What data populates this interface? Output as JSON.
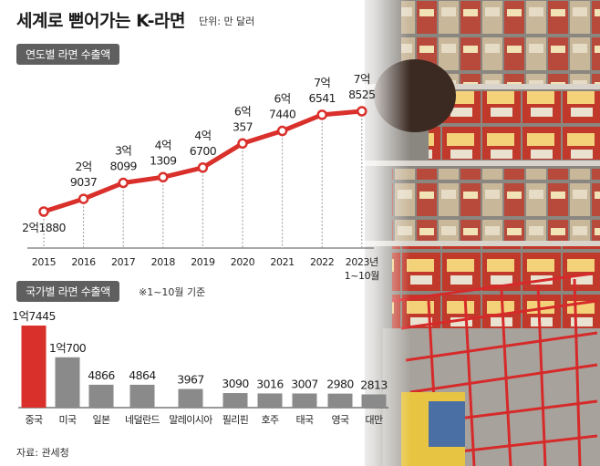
{
  "header": {
    "title": "세계로 뻗어가는 K-라면",
    "unit": "단위: 만 달러"
  },
  "yearly": {
    "label": "연도별 라면 수출액"
  },
  "country": {
    "label": "국가별 라면 수출액",
    "note": "※1~10월 기준"
  },
  "source": "자료: 관세청",
  "colors": {
    "accent": "#d9302b",
    "bar_gray": "#8a8a8a",
    "tag_bg": "#5f5f5f"
  },
  "chart_data": [
    {
      "type": "line",
      "title": "연도별 라면 수출액",
      "x": [
        "2015",
        "2016",
        "2017",
        "2018",
        "2019",
        "2020",
        "2021",
        "2022",
        "2023년 1~10월"
      ],
      "x_tick_lines": [
        [
          "2015"
        ],
        [
          "2016"
        ],
        [
          "2017"
        ],
        [
          "2018"
        ],
        [
          "2019"
        ],
        [
          "2020"
        ],
        [
          "2021"
        ],
        [
          "2022"
        ],
        [
          "2023년",
          "1~10월"
        ]
      ],
      "values": [
        21880,
        29037,
        38099,
        41309,
        46700,
        60357,
        67440,
        76541,
        78525
      ],
      "data_labels": [
        [
          "2억1880"
        ],
        [
          "2억",
          "9037"
        ],
        [
          "3억",
          "8099"
        ],
        [
          "4억",
          "1309"
        ],
        [
          "4억",
          "6700"
        ],
        [
          "6억",
          "357"
        ],
        [
          "6억",
          "7440"
        ],
        [
          "7억",
          "6541"
        ],
        [
          "7억",
          "8525"
        ]
      ],
      "grid": "vertical dashed",
      "color": "#d9302b"
    },
    {
      "type": "bar",
      "title": "국가별 라면 수출액",
      "categories": [
        "중국",
        "미국",
        "일본",
        "네덜란드",
        "말레이시아",
        "필리핀",
        "호주",
        "태국",
        "영국",
        "대만"
      ],
      "values": [
        17445,
        10700,
        4866,
        4864,
        3967,
        3090,
        3016,
        3007,
        2980,
        2813
      ],
      "data_labels": [
        "1억7445",
        "1억700",
        "4866",
        "4864",
        "3967",
        "3090",
        "3016",
        "3007",
        "2980",
        "2813"
      ],
      "highlight": "중국",
      "colors": {
        "highlight": "#d9302b",
        "default": "#8a8a8a"
      }
    }
  ]
}
